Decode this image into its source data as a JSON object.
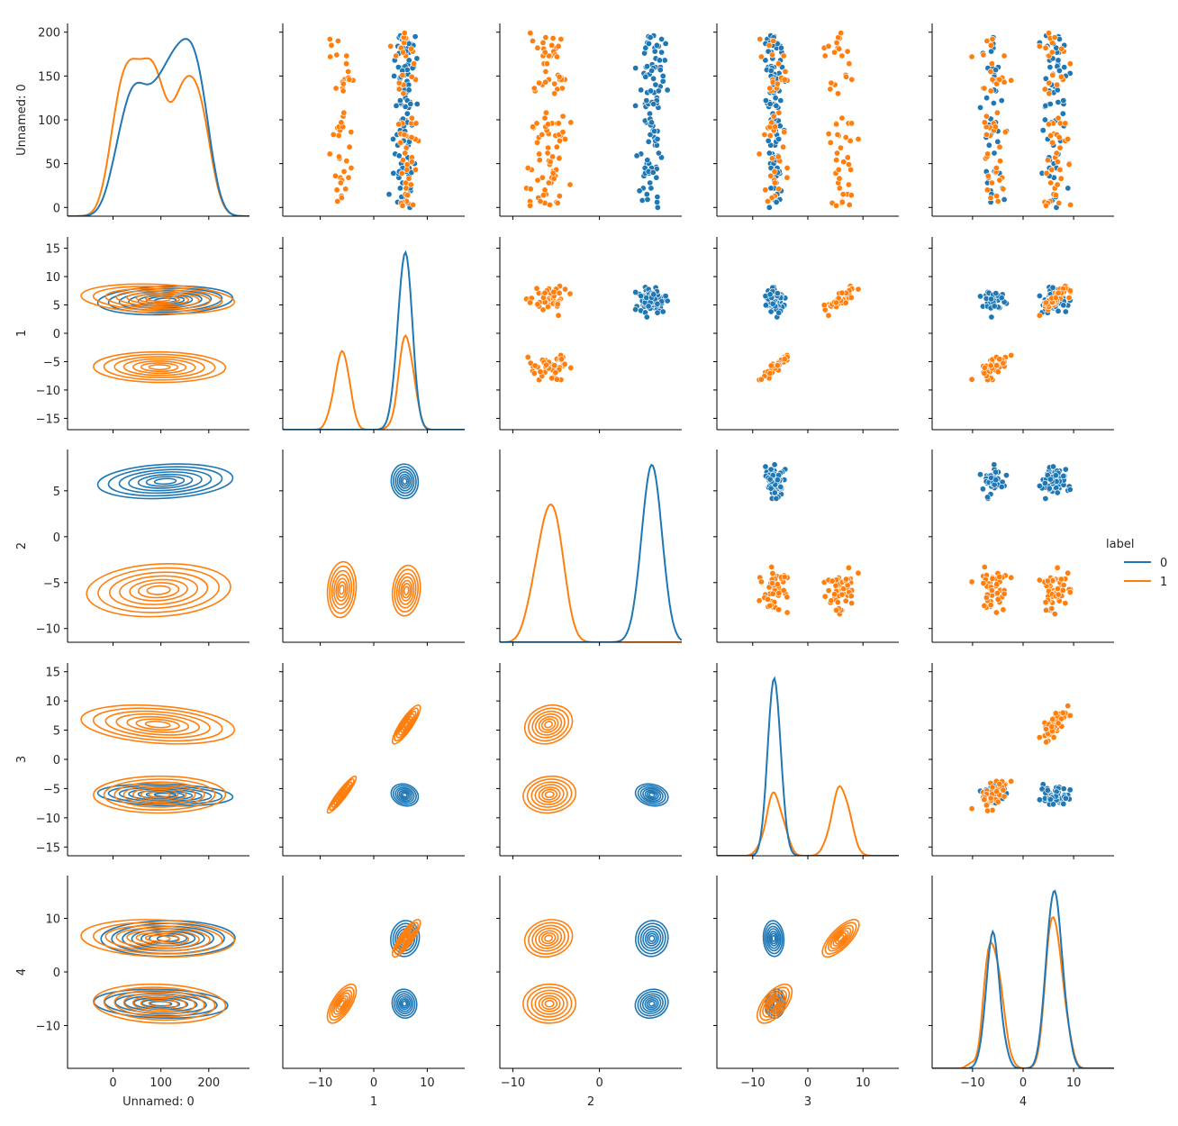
{
  "chart_data": {
    "type": "pairplot",
    "variables": [
      "Unnamed: 0",
      "1",
      "2",
      "3",
      "4"
    ],
    "hue": "label",
    "legend": {
      "title": "label",
      "entries": [
        "0",
        "1"
      ],
      "placement": "right"
    },
    "colors": {
      "0": "#1f77b4",
      "1": "#ff7f0e"
    },
    "diagonal": "kde",
    "lower": "kde",
    "upper": "scatter",
    "axes": [
      {
        "name": "Unnamed: 0",
        "range": [
          -95,
          285
        ],
        "ticks": [
          0,
          100,
          200
        ],
        "yrange": [
          -10,
          210
        ],
        "yticks": [
          0,
          50,
          100,
          150,
          200
        ]
      },
      {
        "name": "1",
        "range": [
          -17,
          17
        ],
        "ticks": [
          -10,
          0,
          10
        ],
        "yrange": [
          -17,
          17
        ],
        "yticks": [
          -15,
          -10,
          -5,
          0,
          5,
          10,
          15
        ]
      },
      {
        "name": "2",
        "range": [
          -11.5,
          9.5
        ],
        "ticks": [
          -10,
          0
        ],
        "yrange": [
          -11.5,
          9.5
        ],
        "yticks": [
          -10,
          -5,
          0,
          5
        ]
      },
      {
        "name": "3",
        "range": [
          -16.5,
          16.5
        ],
        "ticks": [
          -10,
          0,
          10
        ],
        "yrange": [
          -16.5,
          16.5
        ],
        "yticks": [
          -15,
          -10,
          -5,
          0,
          5,
          10,
          15
        ]
      },
      {
        "name": "4",
        "range": [
          -18,
          18
        ],
        "ticks": [
          -10,
          0,
          10
        ],
        "yrange": [
          -18,
          18
        ],
        "yticks": [
          -10,
          0,
          10
        ]
      }
    ],
    "clusters": {
      "0": {
        "v": [
          [
            100,
            57
          ],
          [
            6,
            1
          ],
          [
            6,
            1
          ],
          [
            -6,
            1
          ],
          [
            -6,
            1
          ]
        ],
        "v_alt": [
          [
            100,
            57
          ],
          [
            6,
            1
          ],
          [
            6,
            1
          ],
          [
            -6,
            1
          ],
          [
            6,
            1
          ]
        ]
      },
      "1": {
        "groups": [
          {
            "v": [
              [
                90,
                55
              ],
              [
                -6,
                1
              ],
              [
                -6,
                1
              ],
              [
                -6,
                1
              ],
              [
                -6,
                1
              ]
            ]
          },
          {
            "v": [
              [
                90,
                55
              ],
              [
                6,
                1
              ],
              [
                -6,
                1
              ],
              [
                6,
                1
              ],
              [
                6,
                1
              ]
            ]
          }
        ]
      }
    },
    "series": [
      {
        "name": "0",
        "n": 100
      },
      {
        "name": "1",
        "n": 100
      }
    ]
  }
}
